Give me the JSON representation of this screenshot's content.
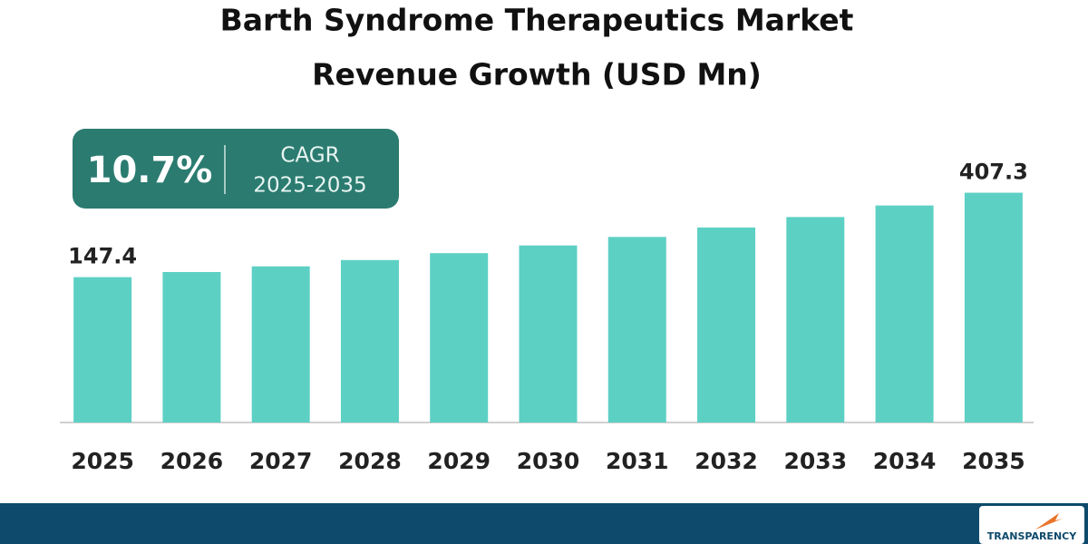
{
  "chart_data": {
    "type": "bar",
    "title": [
      "Barth Syndrome Therapeutics Market",
      "Revenue Growth (USD Mn)"
    ],
    "callout": {
      "value": "10.7%",
      "label": "CAGR",
      "period": "2025-2035"
    },
    "categories": [
      "2025",
      "2026",
      "2027",
      "2028",
      "2029",
      "2030",
      "2031",
      "2032",
      "2033",
      "2034",
      "2035"
    ],
    "values": [
      147.4,
      163.2,
      180.6,
      200.0,
      221.3,
      245.0,
      271.2,
      300.2,
      332.4,
      368.0,
      407.3
    ],
    "value_labels": [
      "147.4",
      null,
      null,
      null,
      null,
      null,
      null,
      null,
      null,
      null,
      "407.3"
    ],
    "color": "#5dd0c4",
    "ylim": [
      -300,
      420
    ],
    "logo": "TRANSPARENCY"
  }
}
